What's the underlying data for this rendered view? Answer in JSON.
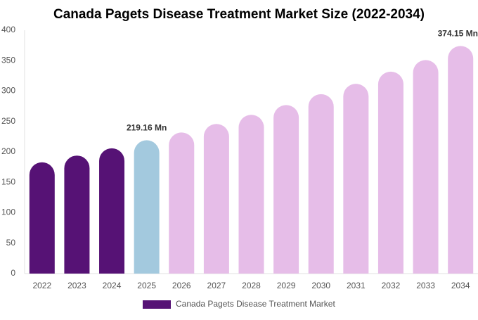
{
  "chart_data": {
    "type": "bar",
    "title": "Canada Pagets Disease Treatment Market Size (2022-2034)",
    "categories": [
      "2022",
      "2023",
      "2024",
      "2025",
      "2026",
      "2027",
      "2028",
      "2029",
      "2030",
      "2031",
      "2032",
      "2033",
      "2034"
    ],
    "series": [
      {
        "name": "Canada Pagets Disease Treatment Market",
        "color": "#561275",
        "colors": [
          "#561275",
          "#561275",
          "#561275",
          "#a3c9de",
          "#e6bde8",
          "#e6bde8",
          "#e6bde8",
          "#e6bde8",
          "#e6bde8",
          "#e6bde8",
          "#e6bde8",
          "#e6bde8",
          "#e6bde8"
        ],
        "values": [
          183,
          194,
          206,
          219.16,
          232,
          246,
          261,
          277,
          295,
          312,
          332,
          351,
          374.15
        ],
        "value_labels": [
          null,
          null,
          null,
          "219.16 Mn",
          null,
          null,
          null,
          null,
          null,
          null,
          null,
          null,
          "374.15 Mn"
        ]
      }
    ],
    "ylim": [
      0,
      400
    ],
    "yticks": [
      0,
      50,
      100,
      150,
      200,
      250,
      300,
      350,
      400
    ],
    "grid": false
  }
}
